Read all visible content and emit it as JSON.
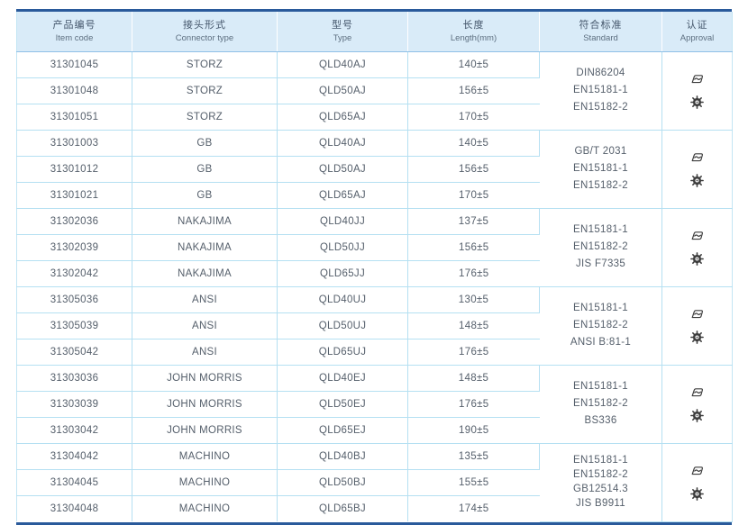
{
  "colors": {
    "heavy_border": "#2a5a9b",
    "header_bg": "#d9ebf8",
    "grid_line": "#b5e0f2",
    "header_text": "#44566b",
    "body_text": "#555f6b",
    "icon_color": "#3d3d3d"
  },
  "icons": {
    "approval": [
      "certificate-stamp",
      "gear-seal"
    ]
  },
  "table": {
    "columns": [
      {
        "zh": "产品编号",
        "en": "Item code"
      },
      {
        "zh": "接头形式",
        "en": "Connector type"
      },
      {
        "zh": "型号",
        "en": "Type"
      },
      {
        "zh": "长度",
        "en": "Length(mm)"
      },
      {
        "zh": "符合标准",
        "en": "Standard"
      },
      {
        "zh": "认证",
        "en": "Approval"
      }
    ],
    "groups": [
      {
        "rows": [
          {
            "item_code": "31301045",
            "connector": "STORZ",
            "type": "QLD40AJ",
            "length": "140±5"
          },
          {
            "item_code": "31301048",
            "connector": "STORZ",
            "type": "QLD50AJ",
            "length": "156±5"
          },
          {
            "item_code": "31301051",
            "connector": "STORZ",
            "type": "QLD65AJ",
            "length": "170±5"
          }
        ],
        "standards": [
          "DIN86204",
          "EN15181-1",
          "EN15182-2"
        ]
      },
      {
        "rows": [
          {
            "item_code": "31301003",
            "connector": "GB",
            "type": "QLD40AJ",
            "length": "140±5"
          },
          {
            "item_code": "31301012",
            "connector": "GB",
            "type": "QLD50AJ",
            "length": "156±5"
          },
          {
            "item_code": "31301021",
            "connector": "GB",
            "type": "QLD65AJ",
            "length": "170±5"
          }
        ],
        "standards": [
          "GB/T 2031",
          "EN15181-1",
          "EN15182-2"
        ]
      },
      {
        "rows": [
          {
            "item_code": "31302036",
            "connector": "NAKAJIMA",
            "type": "QLD40JJ",
            "length": "137±5"
          },
          {
            "item_code": "31302039",
            "connector": "NAKAJIMA",
            "type": "QLD50JJ",
            "length": "156±5"
          },
          {
            "item_code": "31302042",
            "connector": "NAKAJIMA",
            "type": "QLD65JJ",
            "length": "176±5"
          }
        ],
        "standards": [
          "EN15181-1",
          "EN15182-2",
          "JIS F7335"
        ]
      },
      {
        "rows": [
          {
            "item_code": "31305036",
            "connector": "ANSI",
            "type": "QLD40UJ",
            "length": "130±5"
          },
          {
            "item_code": "31305039",
            "connector": "ANSI",
            "type": "QLD50UJ",
            "length": "148±5"
          },
          {
            "item_code": "31305042",
            "connector": "ANSI",
            "type": "QLD65UJ",
            "length": "176±5"
          }
        ],
        "standards": [
          "EN15181-1",
          "EN15182-2",
          "ANSI B:81-1"
        ]
      },
      {
        "rows": [
          {
            "item_code": "31303036",
            "connector": "JOHN MORRIS",
            "type": "QLD40EJ",
            "length": "148±5"
          },
          {
            "item_code": "31303039",
            "connector": "JOHN MORRIS",
            "type": "QLD50EJ",
            "length": "176±5"
          },
          {
            "item_code": "31303042",
            "connector": "JOHN MORRIS",
            "type": "QLD65EJ",
            "length": "190±5"
          }
        ],
        "standards": [
          "EN15181-1",
          "EN15182-2",
          "BS336"
        ]
      },
      {
        "rows": [
          {
            "item_code": "31304042",
            "connector": "MACHINO",
            "type": "QLD40BJ",
            "length": "135±5"
          },
          {
            "item_code": "31304045",
            "connector": "MACHINO",
            "type": "QLD50BJ",
            "length": "155±5"
          },
          {
            "item_code": "31304048",
            "connector": "MACHINO",
            "type": "QLD65BJ",
            "length": "174±5"
          }
        ],
        "standards": [
          "EN15181-1",
          "EN15182-2",
          "GB12514.3",
          "JIS B9911"
        ]
      }
    ]
  }
}
